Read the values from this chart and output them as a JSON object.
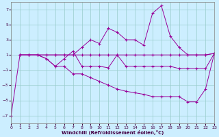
{
  "xlabel": "Windchill (Refroidissement éolien,°C)",
  "background_color": "#cceeff",
  "grid_color": "#99cccc",
  "line_color": "#990099",
  "xlim": [
    0,
    23
  ],
  "ylim": [
    -8,
    8
  ],
  "yticks": [
    -7,
    -5,
    -3,
    -1,
    1,
    3,
    5,
    7
  ],
  "xticks": [
    0,
    1,
    2,
    3,
    4,
    5,
    6,
    7,
    8,
    9,
    10,
    11,
    12,
    13,
    14,
    15,
    16,
    17,
    18,
    19,
    20,
    21,
    22,
    23
  ],
  "series": [
    {
      "x": [
        0,
        1,
        2,
        3,
        4,
        5,
        6,
        7,
        8,
        9,
        10,
        11,
        12,
        13,
        14,
        15,
        16,
        17,
        18,
        19,
        20,
        21,
        22,
        23
      ],
      "y": [
        -7,
        1.0,
        1.0,
        1.0,
        1.0,
        1.0,
        1.0,
        1.0,
        2.0,
        3.0,
        2.5,
        4.5,
        4.0,
        3.0,
        3.0,
        2.3,
        6.5,
        7.5,
        3.5,
        2.0,
        1.0,
        1.0,
        1.0,
        1.2
      ]
    },
    {
      "x": [
        1,
        2,
        3,
        4,
        5,
        6,
        7,
        8,
        9,
        10,
        11,
        12,
        13,
        14,
        15,
        16,
        17,
        18,
        19,
        20,
        21,
        22,
        23
      ],
      "y": [
        1.0,
        1.0,
        1.0,
        1.0,
        1.0,
        1.0,
        1.0,
        1.0,
        1.0,
        1.0,
        1.0,
        1.0,
        1.0,
        1.0,
        1.0,
        1.0,
        1.0,
        1.0,
        1.0,
        1.0,
        1.0,
        1.0,
        1.2
      ]
    },
    {
      "x": [
        1,
        2,
        3,
        4,
        5,
        6,
        7,
        8,
        9,
        10,
        11,
        12,
        13,
        14,
        15,
        16,
        17,
        18,
        19,
        20,
        21,
        22,
        23
      ],
      "y": [
        1.0,
        1.0,
        1.0,
        0.5,
        -0.5,
        0.5,
        1.5,
        -0.5,
        -0.5,
        -0.5,
        -0.7,
        1.0,
        -0.5,
        -0.5,
        -0.5,
        -0.5,
        -0.5,
        -0.5,
        -0.8,
        -0.8,
        -0.8,
        -0.8,
        1.2
      ]
    },
    {
      "x": [
        1,
        2,
        3,
        4,
        5,
        6,
        7,
        8,
        9,
        10,
        11,
        12,
        13,
        14,
        15,
        16,
        17,
        18,
        19,
        20,
        21,
        22,
        23
      ],
      "y": [
        1.0,
        1.0,
        1.0,
        0.5,
        -0.5,
        -0.5,
        -1.5,
        -1.5,
        -2.0,
        -2.5,
        -3.0,
        -3.5,
        -3.8,
        -4.0,
        -4.2,
        -4.5,
        -4.5,
        -4.5,
        -4.5,
        -5.2,
        -5.2,
        -3.5,
        1.2
      ]
    }
  ]
}
